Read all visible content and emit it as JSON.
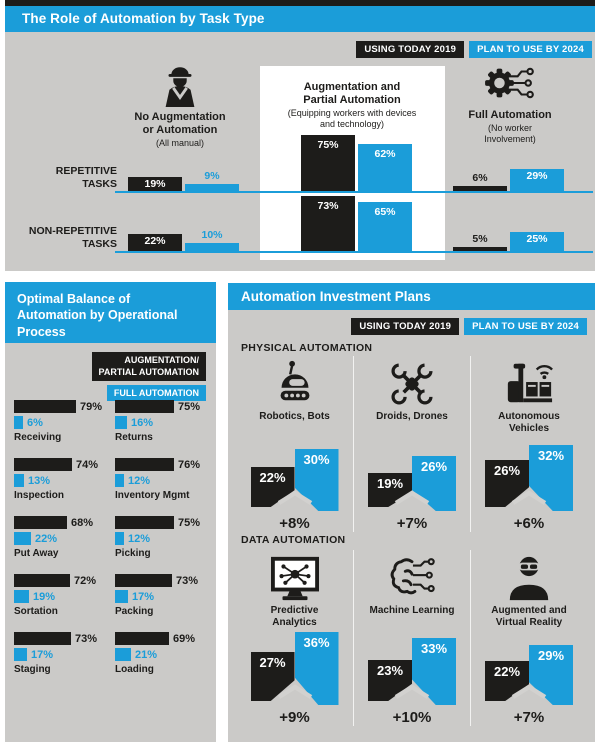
{
  "colors": {
    "blue": "#1b9dd9",
    "ink": "#1d1c1a",
    "panel_gray": "#cbcac8"
  },
  "role": {
    "title": "The Role of Automation by Task Type",
    "legend_today": "USING TODAY 2019",
    "legend_plan": "PLAN TO USE BY 2024",
    "columns": [
      {
        "icon": "worker-icon",
        "name": "No Augmentation\nor Automation",
        "sub": "(All manual)"
      },
      {
        "icon": "none",
        "name": "Augmentation and\nPartial Automation",
        "sub": "(Equipping workers with devices\nand technology)"
      },
      {
        "icon": "automation-gear-icon",
        "name": "Full Automation",
        "sub": "(No worker\nInvolvement)"
      }
    ],
    "rows": [
      {
        "label": "REPETITIVE\nTASKS",
        "pairs": [
          [
            19,
            9
          ],
          [
            75,
            62
          ],
          [
            6,
            29
          ]
        ]
      },
      {
        "label": "NON-REPETITIVE\nTASKS",
        "pairs": [
          [
            22,
            10
          ],
          [
            73,
            65
          ],
          [
            5,
            25
          ]
        ]
      }
    ]
  },
  "balance": {
    "title": "Optimal Balance of\nAutomation by Operational\nProcess",
    "legend_black": "AUGMENTATION/\nPARTIAL AUTOMATION",
    "legend_blue": "FULL AUTOMATION",
    "items": [
      {
        "name": "Receiving",
        "aug": 79,
        "full": 6
      },
      {
        "name": "Returns",
        "aug": 75,
        "full": 16
      },
      {
        "name": "Inspection",
        "aug": 74,
        "full": 13
      },
      {
        "name": "Inventory Mgmt",
        "aug": 76,
        "full": 12
      },
      {
        "name": "Put Away",
        "aug": 68,
        "full": 22
      },
      {
        "name": "Picking",
        "aug": 75,
        "full": 12
      },
      {
        "name": "Sortation",
        "aug": 72,
        "full": 19
      },
      {
        "name": "Packing",
        "aug": 73,
        "full": 17
      },
      {
        "name": "Staging",
        "aug": 73,
        "full": 17
      },
      {
        "name": "Loading",
        "aug": 69,
        "full": 21
      }
    ]
  },
  "invest": {
    "title": "Automation Investment Plans",
    "legend_today": "USING TODAY 2019",
    "legend_plan": "PLAN TO USE BY 2024",
    "groups": [
      {
        "header": "PHYSICAL AUTOMATION",
        "items": [
          {
            "icon": "robot-icon",
            "name": "Robotics, Bots",
            "today": 22,
            "plan": 30,
            "delta": "+8%"
          },
          {
            "icon": "drone-icon",
            "name": "Droids, Drones",
            "today": 19,
            "plan": 26,
            "delta": "+7%"
          },
          {
            "icon": "forklift-icon",
            "name": "Autonomous\nVehicles",
            "today": 26,
            "plan": 32,
            "delta": "+6%"
          }
        ]
      },
      {
        "header": "DATA AUTOMATION",
        "items": [
          {
            "icon": "analytics-icon",
            "name": "Predictive\nAnalytics",
            "today": 27,
            "plan": 36,
            "delta": "+9%"
          },
          {
            "icon": "machine-learning-icon",
            "name": "Machine Learning",
            "today": 23,
            "plan": 33,
            "delta": "+10%"
          },
          {
            "icon": "vr-icon",
            "name": "Augmented and\nVirtual Reality",
            "today": 22,
            "plan": 29,
            "delta": "+7%"
          }
        ]
      }
    ]
  },
  "chart_data": [
    {
      "type": "bar",
      "title": "The Role of Automation by Task Type",
      "legend": [
        "USING TODAY 2019",
        "PLAN TO USE BY 2024"
      ],
      "legend_position": "top-right",
      "unit": "%",
      "groups": [
        "No Augmentation or Automation (All manual)",
        "Augmentation and Partial Automation (Equipping workers with devices and technology)",
        "Full Automation (No worker Involvement)"
      ],
      "rows": [
        {
          "category": "REPETITIVE TASKS",
          "series": [
            {
              "name": "USING TODAY 2019",
              "values": [
                19,
                75,
                6
              ]
            },
            {
              "name": "PLAN TO USE BY 2024",
              "values": [
                9,
                62,
                29
              ]
            }
          ]
        },
        {
          "category": "NON-REPETITIVE TASKS",
          "series": [
            {
              "name": "USING TODAY 2019",
              "values": [
                22,
                73,
                5
              ]
            },
            {
              "name": "PLAN TO USE BY 2024",
              "values": [
                10,
                65,
                25
              ]
            }
          ]
        }
      ]
    },
    {
      "type": "bar",
      "title": "Optimal Balance of Automation by Operational Process",
      "unit": "%",
      "categories": [
        "Receiving",
        "Returns",
        "Inspection",
        "Inventory Mgmt",
        "Put Away",
        "Picking",
        "Sortation",
        "Packing",
        "Staging",
        "Loading"
      ],
      "series": [
        {
          "name": "AUGMENTATION/PARTIAL AUTOMATION",
          "values": [
            79,
            75,
            74,
            76,
            68,
            75,
            72,
            73,
            73,
            69
          ]
        },
        {
          "name": "FULL AUTOMATION",
          "values": [
            6,
            16,
            13,
            12,
            22,
            12,
            19,
            17,
            17,
            21
          ]
        }
      ]
    },
    {
      "type": "bar",
      "title": "Automation Investment Plans",
      "legend": [
        "USING TODAY 2019",
        "PLAN TO USE BY 2024"
      ],
      "unit": "%",
      "categories": [
        "Robotics, Bots",
        "Droids, Drones",
        "Autonomous Vehicles",
        "Predictive Analytics",
        "Machine Learning",
        "Augmented and Virtual Reality"
      ],
      "category_groups": [
        "PHYSICAL AUTOMATION",
        "PHYSICAL AUTOMATION",
        "PHYSICAL AUTOMATION",
        "DATA AUTOMATION",
        "DATA AUTOMATION",
        "DATA AUTOMATION"
      ],
      "series": [
        {
          "name": "USING TODAY 2019",
          "values": [
            22,
            19,
            26,
            27,
            23,
            22
          ]
        },
        {
          "name": "PLAN TO USE BY 2024",
          "values": [
            30,
            26,
            32,
            36,
            33,
            29
          ]
        }
      ],
      "deltas": [
        "+8%",
        "+7%",
        "+6%",
        "+9%",
        "+10%",
        "+7%"
      ]
    }
  ]
}
